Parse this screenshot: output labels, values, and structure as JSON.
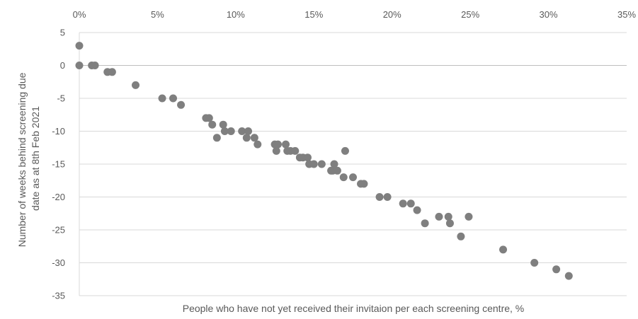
{
  "chart_data": {
    "type": "scatter",
    "title": "",
    "xlabel": "People who have not yet received their invitaion per each screening centre, %",
    "ylabel_lines": [
      "Number of weeks behind screening due",
      "date as at 8th Feb 2021"
    ],
    "xlim": [
      0,
      35
    ],
    "ylim": [
      -35,
      5
    ],
    "x_ticks": [
      0,
      5,
      10,
      15,
      20,
      25,
      30,
      35
    ],
    "x_tick_labels": [
      "0%",
      "5%",
      "10%",
      "15%",
      "20%",
      "25%",
      "30%",
      "35%"
    ],
    "y_ticks": [
      5,
      0,
      -5,
      -10,
      -15,
      -20,
      -25,
      -30,
      -35
    ],
    "y_tick_labels": [
      "5",
      "0",
      "-5",
      "-10",
      "-15",
      "-20",
      "-25",
      "-30",
      "-35"
    ],
    "x_axis_position": "top",
    "grid": true,
    "legend": "none",
    "marker_color": "#7f7f7f",
    "grid_color": "#d9d9d9",
    "series": [
      {
        "points": [
          [
            0.0,
            3
          ],
          [
            0.0,
            0
          ],
          [
            0.8,
            0
          ],
          [
            1.0,
            0
          ],
          [
            1.8,
            -1
          ],
          [
            2.1,
            -1
          ],
          [
            3.6,
            -3
          ],
          [
            5.3,
            -5
          ],
          [
            6.0,
            -5
          ],
          [
            6.5,
            -6
          ],
          [
            8.1,
            -8
          ],
          [
            8.3,
            -8
          ],
          [
            8.5,
            -9
          ],
          [
            8.8,
            -11
          ],
          [
            9.2,
            -9
          ],
          [
            9.3,
            -10
          ],
          [
            9.7,
            -10
          ],
          [
            10.4,
            -10
          ],
          [
            10.7,
            -11
          ],
          [
            10.8,
            -10
          ],
          [
            11.2,
            -11
          ],
          [
            11.4,
            -12
          ],
          [
            12.5,
            -12
          ],
          [
            12.6,
            -13
          ],
          [
            12.7,
            -12
          ],
          [
            13.2,
            -12
          ],
          [
            13.3,
            -13
          ],
          [
            13.5,
            -13
          ],
          [
            13.8,
            -13
          ],
          [
            14.1,
            -14
          ],
          [
            14.3,
            -14
          ],
          [
            14.6,
            -14
          ],
          [
            14.7,
            -15
          ],
          [
            15.0,
            -15
          ],
          [
            15.5,
            -15
          ],
          [
            16.1,
            -16
          ],
          [
            16.2,
            -16
          ],
          [
            16.3,
            -15
          ],
          [
            16.5,
            -16
          ],
          [
            16.9,
            -17
          ],
          [
            17.0,
            -13
          ],
          [
            17.5,
            -17
          ],
          [
            18.0,
            -18
          ],
          [
            18.2,
            -18
          ],
          [
            19.2,
            -20
          ],
          [
            19.7,
            -20
          ],
          [
            20.7,
            -21
          ],
          [
            21.2,
            -21
          ],
          [
            21.6,
            -22
          ],
          [
            22.1,
            -24
          ],
          [
            23.0,
            -23
          ],
          [
            23.6,
            -23
          ],
          [
            23.7,
            -24
          ],
          [
            24.4,
            -26
          ],
          [
            24.9,
            -23
          ],
          [
            27.1,
            -28
          ],
          [
            29.1,
            -30
          ],
          [
            30.5,
            -31
          ],
          [
            31.3,
            -32
          ]
        ]
      }
    ]
  }
}
